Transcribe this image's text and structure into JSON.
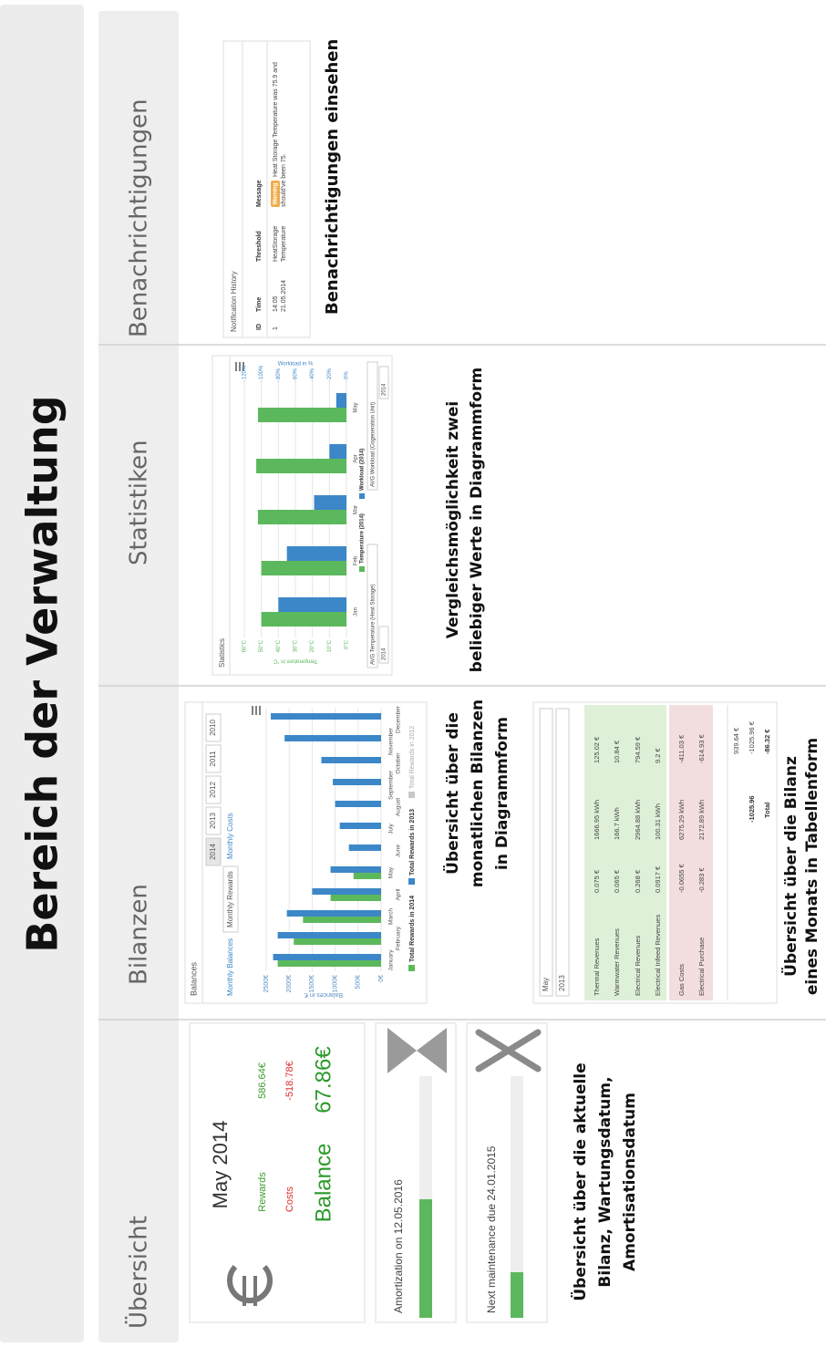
{
  "title": "Bereich der Verwaltung",
  "headers": [
    "Übersicht",
    "Bilanzen",
    "Statistiken",
    "Benachrichtigungen"
  ],
  "overview": {
    "month": "May 2014",
    "rewards_label": "Rewards",
    "rewards": "586.64€",
    "costs_label": "Costs",
    "costs": "-518.78€",
    "balance_label": "Balance",
    "balance": "67.86€",
    "amortization": "Amortization on 12.05.2016",
    "maintenance": "Next maintenance due 24.01.2015",
    "caption": [
      "Übersicht über die aktuelle",
      "Bilanz, Wartungsdatum,",
      "Amortisationsdatum"
    ]
  },
  "balances_chart": {
    "type": "bar",
    "title": "Balances",
    "tabs": [
      "Monthly Balances",
      "Monthly Rewards",
      "Monthly Costs"
    ],
    "years": [
      "2014",
      "2013",
      "2012",
      "2011",
      "2010"
    ],
    "y_label": "Balances in €",
    "ylim": [
      0,
      2500
    ],
    "yticks": [
      {
        "value": 0,
        "label": "0€"
      },
      {
        "value": 500,
        "label": "500€"
      },
      {
        "value": 1000,
        "label": "1000€"
      },
      {
        "value": 1500,
        "label": "1500€"
      },
      {
        "value": 2000,
        "label": "2000€"
      },
      {
        "value": 2500,
        "label": "2500€"
      }
    ],
    "grid": true,
    "categories": [
      "January",
      "February",
      "March",
      "April",
      "May",
      "June",
      "July",
      "August",
      "September",
      "October",
      "November",
      "December"
    ],
    "series": [
      {
        "name": "Total Rewards in 2014",
        "color": "#5cb85c",
        "values": [
          2250,
          1900,
          1700,
          1100,
          600,
          null,
          null,
          null,
          null,
          null,
          null,
          null
        ]
      },
      {
        "name": "Total Rewards in 2013",
        "color": "#3c87c8",
        "values": [
          2350,
          2250,
          2050,
          1500,
          1100,
          700,
          900,
          1000,
          1050,
          1300,
          2100,
          2400
        ]
      },
      {
        "name": "Total Rewards in 2012",
        "color": "#c8c8c8",
        "values": [
          null,
          null,
          null,
          null,
          null,
          null,
          null,
          null,
          null,
          null,
          null,
          null
        ]
      }
    ],
    "caption": [
      "Übersicht über die",
      "monatlichen Bilanzen",
      "in Diagrammform"
    ]
  },
  "balance_table": {
    "month": "May",
    "year": "2013",
    "rows": [
      [
        "Thermal Revenues",
        "0.075 €",
        "1666.95 kWh",
        "125.02 €"
      ],
      [
        "Warmwater Revenues",
        "0.065 €",
        "166.7 kWh",
        "10.84 €"
      ],
      [
        "Electrical Revenues",
        "0.268 €",
        "2964.88 kWh",
        "794.59 €"
      ],
      [
        "Electrical Infeed Revenues",
        "0.0917 €",
        "100.31 kWh",
        "9.2 €"
      ],
      [
        "Gas Costs",
        "-0.0655 €",
        "6275.29 kWh",
        "-411.03 €"
      ],
      [
        "Electrical Purchase",
        "-0.283 €",
        "2172.89 kWh",
        "-614.93 €"
      ]
    ],
    "subtotal": "939.64 €",
    "costs_total": "-1025.96",
    "costs_total_eur": "-1025.96 €",
    "total_label": "Total",
    "total": "-86.32 €",
    "caption": [
      "Übersicht über die Bilanz",
      "eines Monats in Tabellenform"
    ]
  },
  "statistics": {
    "type": "bar",
    "title": "Statistics",
    "y_label": "Temperature in °C",
    "y2_label": "Workload in %",
    "categories": [
      "Jan",
      "Feb",
      "Mar",
      "Apr",
      "May"
    ],
    "ylim": [
      0,
      60
    ],
    "yticks": [
      {
        "value": 0,
        "label": "0°C"
      },
      {
        "value": 10,
        "label": "10°C"
      },
      {
        "value": 20,
        "label": "20°C"
      },
      {
        "value": 30,
        "label": "30°C"
      },
      {
        "value": 40,
        "label": "40°C"
      },
      {
        "value": 50,
        "label": "50°C"
      },
      {
        "value": 60,
        "label": "60°C"
      }
    ],
    "y2lim": [
      0,
      120
    ],
    "y2ticks": [
      {
        "value": 0,
        "label": "0%"
      },
      {
        "value": 20,
        "label": "20%"
      },
      {
        "value": 40,
        "label": "40%"
      },
      {
        "value": 60,
        "label": "60%"
      },
      {
        "value": 80,
        "label": "80%"
      },
      {
        "value": 100,
        "label": "100%"
      },
      {
        "value": 120,
        "label": "120%"
      }
    ],
    "grid": true,
    "series": [
      {
        "name": "Temperature (2014)",
        "color": "#5cb85c",
        "values": [
          50,
          50,
          52,
          53,
          52
        ]
      },
      {
        "name": "Workload (2014)",
        "color": "#3c87c8",
        "axis": "y2",
        "values": [
          80,
          70,
          38,
          20,
          12
        ]
      }
    ],
    "selects": [
      "AVG Temperature (Heat Storage)",
      "2014",
      "AVG Workload (Cogeneration Unit)",
      "2014"
    ],
    "caption": [
      "Vergleichsmöglichkeit zwei",
      "beliebiger Werte in Diagrammform"
    ]
  },
  "notifications": {
    "title": "Notification History",
    "columns": [
      "ID",
      "Time",
      "Threshold",
      "Message"
    ],
    "row": {
      "id": "1",
      "time": [
        "14:05",
        "21.05.2014"
      ],
      "threshold": [
        "HeatStorage",
        "Temperature"
      ],
      "badge": "Warning",
      "message": [
        "Heat Storage Temperature was 75.9 and",
        "should've been 75."
      ]
    },
    "caption": "Benachrichtigungen einsehen"
  }
}
